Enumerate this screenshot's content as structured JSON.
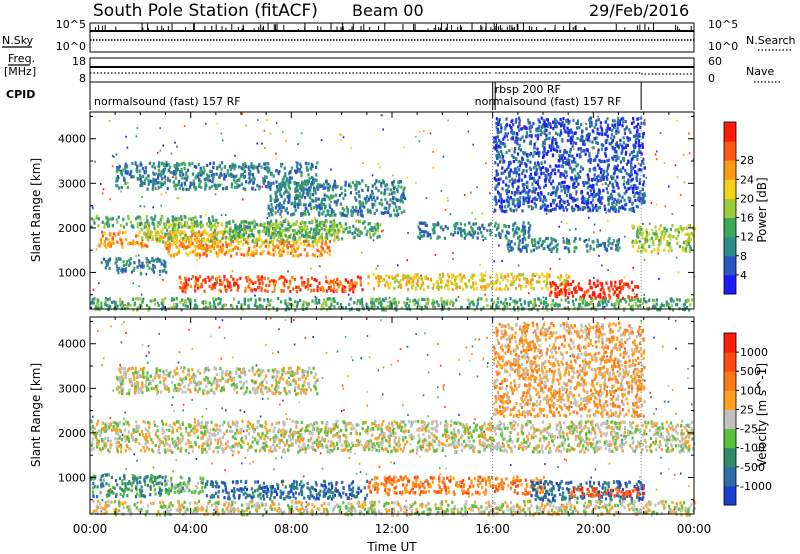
{
  "header": {
    "station": "South Pole Station (fitACF)",
    "beam": "Beam 00",
    "date": "29/Feb/2016"
  },
  "status_panels": {
    "nsky_label": "N.Sky",
    "nsky_ticks": [
      "10^5",
      "10^0"
    ],
    "nsearch_label": "N.Search",
    "nsearch_ticks": [
      "10^5",
      "10^0"
    ],
    "freq_label": "Freq.",
    "freq_unit": "[MHz]",
    "freq_ticks": [
      "18",
      "8"
    ],
    "nave_label": "Nave",
    "nave_ticks": [
      "60",
      "0"
    ],
    "cpid_label": "CPID",
    "cpid_segments": [
      {
        "label": "normalsound (fast) 157 RF",
        "start_hour": 0,
        "end_hour": 16
      },
      {
        "label": "rbsp 200 RF",
        "start_hour": 16,
        "end_hour": 16.1
      },
      {
        "label": "normalsound (fast) 157 RF",
        "start_hour": 16.1,
        "end_hour": 21.9
      }
    ]
  },
  "chart_data": [
    {
      "type": "heatmap",
      "parameter": "power",
      "xlabel": "Time UT",
      "ylabel": "Slant Range [km]",
      "x_ticks": [
        "00:00",
        "04:00",
        "08:00",
        "12:00",
        "16:00",
        "20:00",
        "00:00"
      ],
      "x_range_hours": [
        0,
        24
      ],
      "y_ticks": [
        1000,
        2000,
        3000,
        4000
      ],
      "y_range_km": [
        180,
        4600
      ],
      "colorbar": {
        "label": "Power [dB]",
        "ticks": [
          "4",
          "8",
          "12",
          "16",
          "20",
          "24",
          "28"
        ],
        "colors": [
          "#1a1aff",
          "#2a55c4",
          "#2e8b8b",
          "#3ea85a",
          "#9ccc3c",
          "#f2d21a",
          "#ff9a14",
          "#ff5a14",
          "#ff1a0a"
        ]
      },
      "bands": [
        {
          "t0": 0.0,
          "t1": 5.0,
          "r0": 2050,
          "r1": 2300,
          "level": 3
        },
        {
          "t0": 0.3,
          "t1": 5.5,
          "r0": 1600,
          "r1": 1950,
          "level": 6
        },
        {
          "t0": 0.4,
          "t1": 3.0,
          "r0": 1000,
          "r1": 1350,
          "level": 2
        },
        {
          "t0": 2.0,
          "t1": 10.0,
          "r0": 1700,
          "r1": 2150,
          "level": 4
        },
        {
          "t0": 3.0,
          "t1": 9.5,
          "r0": 1400,
          "r1": 1750,
          "level": 6
        },
        {
          "t0": 3.5,
          "t1": 10.8,
          "r0": 600,
          "r1": 950,
          "level": 7
        },
        {
          "t0": 5.5,
          "t1": 11.5,
          "r0": 1800,
          "r1": 2200,
          "level": 3
        },
        {
          "t0": 7.0,
          "t1": 12.5,
          "r0": 2300,
          "r1": 3100,
          "level": 2
        },
        {
          "t0": 11.0,
          "t1": 19.0,
          "r0": 650,
          "r1": 1000,
          "level": 5
        },
        {
          "t0": 13.0,
          "t1": 17.5,
          "r0": 1800,
          "r1": 2150,
          "level": 2
        },
        {
          "t0": 16.5,
          "t1": 21.0,
          "r0": 1500,
          "r1": 1800,
          "level": 2
        },
        {
          "t0": 18.2,
          "t1": 21.8,
          "r0": 450,
          "r1": 850,
          "level": 8
        },
        {
          "t0": 21.5,
          "t1": 24.0,
          "r0": 1500,
          "r1": 2100,
          "level": 4
        },
        {
          "t0": 1.0,
          "t1": 9.0,
          "r0": 2900,
          "r1": 3500,
          "level": 2
        },
        {
          "t0": 0.0,
          "t1": 24.0,
          "r0": 190,
          "r1": 450,
          "level": 3
        },
        {
          "t0": 16.0,
          "t1": 22.0,
          "r0": 2400,
          "r1": 4500,
          "level": 1
        }
      ]
    },
    {
      "type": "heatmap",
      "parameter": "velocity",
      "xlabel": "Time UT",
      "ylabel": "Slant Range [km]",
      "x_ticks": [
        "00:00",
        "04:00",
        "08:00",
        "12:00",
        "16:00",
        "20:00",
        "00:00"
      ],
      "x_range_hours": [
        0,
        24
      ],
      "y_ticks": [
        1000,
        2000,
        3000,
        4000
      ],
      "y_range_km": [
        180,
        4600
      ],
      "colorbar": {
        "label": "Velocity [m s^-1]",
        "ticks": [
          "1000",
          "500",
          "100",
          "25",
          "-25",
          "-100",
          "-500",
          "-1000"
        ],
        "colors": [
          "#1a3fd0",
          "#2e6ea8",
          "#2e8b6a",
          "#56c23a",
          "#c0c0c0",
          "#ffa020",
          "#ff7a14",
          "#ff4a14",
          "#ff1a0a"
        ]
      },
      "bands": [
        {
          "t0": 0.0,
          "t1": 24.0,
          "r0": 1600,
          "r1": 2300,
          "level": 4
        },
        {
          "t0": 0.0,
          "t1": 3.0,
          "r0": 600,
          "r1": 1100,
          "level": 2
        },
        {
          "t0": 1.0,
          "t1": 9.0,
          "r0": 2900,
          "r1": 3500,
          "level": 4
        },
        {
          "t0": 4.5,
          "t1": 11.0,
          "r0": 550,
          "r1": 950,
          "level": 1
        },
        {
          "t0": 3.0,
          "t1": 4.5,
          "r0": 650,
          "r1": 1050,
          "level": 3
        },
        {
          "t0": 11.0,
          "t1": 18.0,
          "r0": 650,
          "r1": 1050,
          "level": 6
        },
        {
          "t0": 17.5,
          "t1": 22.0,
          "r0": 500,
          "r1": 950,
          "level": 1
        },
        {
          "t0": 19.0,
          "t1": 22.0,
          "r0": 600,
          "r1": 800,
          "level": 7
        },
        {
          "t0": 0.0,
          "t1": 24.0,
          "r0": 190,
          "r1": 500,
          "level": 4
        },
        {
          "t0": 16.0,
          "t1": 22.0,
          "r0": 2400,
          "r1": 4500,
          "level": 5
        }
      ]
    }
  ]
}
